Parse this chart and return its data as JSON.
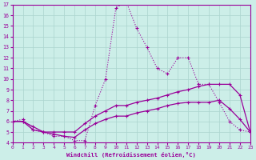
{
  "xlabel": "Windchill (Refroidissement éolien,°C)",
  "background_color": "#cceee8",
  "grid_color": "#aad4ce",
  "line_color": "#990099",
  "xlim": [
    0,
    23
  ],
  "ylim": [
    4,
    17
  ],
  "x_ticks": [
    0,
    1,
    2,
    3,
    4,
    5,
    6,
    7,
    8,
    9,
    10,
    11,
    12,
    13,
    14,
    15,
    16,
    17,
    18,
    19,
    20,
    21,
    22,
    23
  ],
  "y_ticks": [
    4,
    5,
    6,
    7,
    8,
    9,
    10,
    11,
    12,
    13,
    14,
    15,
    16,
    17
  ],
  "line1_x": [
    0,
    1,
    2,
    3,
    4,
    5,
    6,
    7,
    8,
    9,
    10,
    11,
    12,
    13,
    14,
    15,
    16,
    17,
    18,
    19,
    20,
    21,
    22,
    23
  ],
  "line1_y": [
    6.0,
    6.2,
    5.2,
    5.0,
    4.6,
    4.6,
    4.2,
    4.2,
    7.5,
    10.0,
    16.7,
    17.3,
    14.8,
    13.0,
    11.0,
    10.5,
    12.0,
    12.0,
    9.5,
    9.5,
    7.8,
    6.0,
    5.2,
    5.0
  ],
  "line2_x": [
    0,
    1,
    2,
    3,
    4,
    5,
    6,
    7,
    8,
    9,
    10,
    11,
    12,
    13,
    14,
    15,
    16,
    17,
    18,
    19,
    20,
    21,
    22,
    23
  ],
  "line2_y": [
    6.0,
    6.0,
    5.5,
    5.0,
    5.0,
    5.0,
    5.0,
    5.8,
    6.5,
    7.0,
    7.5,
    7.5,
    7.8,
    8.0,
    8.2,
    8.5,
    8.8,
    9.0,
    9.3,
    9.5,
    9.5,
    9.5,
    8.5,
    5.0
  ],
  "line3_x": [
    0,
    1,
    2,
    3,
    4,
    5,
    6,
    7,
    8,
    9,
    10,
    11,
    12,
    13,
    14,
    15,
    16,
    17,
    18,
    19,
    20,
    21,
    22,
    23
  ],
  "line3_y": [
    6.0,
    6.0,
    5.2,
    5.0,
    4.8,
    4.6,
    4.5,
    5.2,
    5.8,
    6.2,
    6.5,
    6.5,
    6.8,
    7.0,
    7.2,
    7.5,
    7.7,
    7.8,
    7.8,
    7.8,
    8.0,
    7.2,
    6.2,
    5.0
  ]
}
